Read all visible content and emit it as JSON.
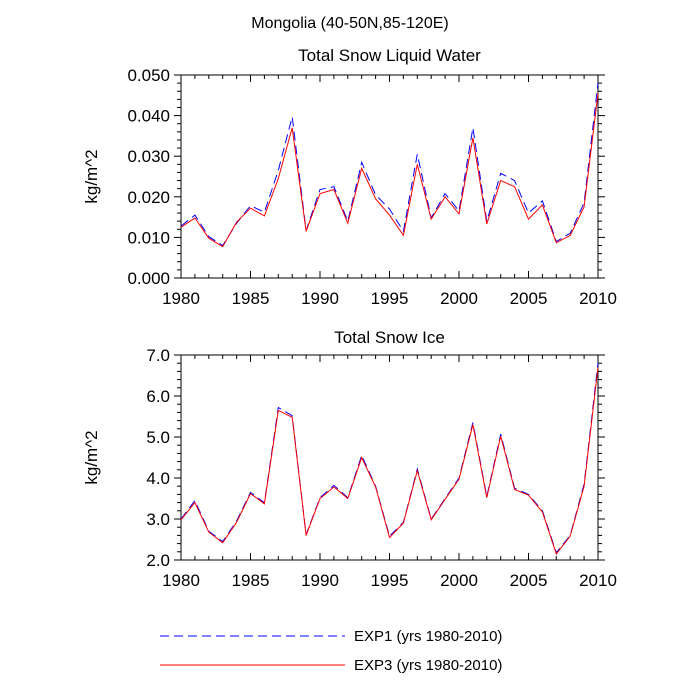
{
  "figure_title": "Mongolia (40-50N,85-120E)",
  "legend": [
    {
      "label": "EXP1 (yrs 1980-2010)",
      "color": "#0000ff",
      "dash": "dashed"
    },
    {
      "label": "EXP3 (yrs 1980-2010)",
      "color": "#ff0000",
      "dash": "solid"
    }
  ],
  "chart_data": [
    {
      "type": "line",
      "title": "Total Snow Liquid Water",
      "xlabel": "",
      "ylabel": "kg/m^2",
      "xlim": [
        1980,
        2010
      ],
      "ylim": [
        0.0,
        0.05
      ],
      "xticks": [
        1980,
        1985,
        1990,
        1995,
        2000,
        2005,
        2010
      ],
      "xtick_labels": [
        "1980",
        "1985",
        "1990",
        "1995",
        "2000",
        "2005",
        "2010"
      ],
      "yticks": [
        0.0,
        0.01,
        0.02,
        0.03,
        0.04,
        0.05
      ],
      "ytick_labels": [
        "0.000",
        "0.010",
        "0.020",
        "0.030",
        "0.040",
        "0.050"
      ],
      "x": [
        1980,
        1981,
        1982,
        1983,
        1984,
        1985,
        1986,
        1987,
        1988,
        1989,
        1990,
        1991,
        1992,
        1993,
        1994,
        1995,
        1996,
        1997,
        1998,
        1999,
        2000,
        2001,
        2002,
        2003,
        2004,
        2005,
        2006,
        2007,
        2008,
        2009,
        2010
      ],
      "series": [
        {
          "name": "EXP1 (yrs 1980-2010)",
          "color": "#0000ff",
          "dash": "dashed",
          "values": [
            0.0128,
            0.0155,
            0.0102,
            0.008,
            0.0135,
            0.0178,
            0.0162,
            0.0265,
            0.0397,
            0.0117,
            0.0218,
            0.0225,
            0.014,
            0.0285,
            0.0205,
            0.017,
            0.0115,
            0.0305,
            0.0148,
            0.0208,
            0.0165,
            0.037,
            0.014,
            0.0258,
            0.024,
            0.016,
            0.019,
            0.009,
            0.011,
            0.0185,
            0.048
          ]
        },
        {
          "name": "EXP3 (yrs 1980-2010)",
          "color": "#ff0000",
          "dash": "solid",
          "values": [
            0.0125,
            0.0148,
            0.0098,
            0.0077,
            0.0138,
            0.0172,
            0.0153,
            0.0245,
            0.037,
            0.0115,
            0.0208,
            0.0218,
            0.0135,
            0.027,
            0.0195,
            0.0155,
            0.0105,
            0.028,
            0.0145,
            0.02,
            0.0158,
            0.0345,
            0.0133,
            0.024,
            0.0225,
            0.0145,
            0.018,
            0.0087,
            0.0105,
            0.0175,
            0.0455
          ]
        }
      ]
    },
    {
      "type": "line",
      "title": "Total Snow Ice",
      "xlabel": "",
      "ylabel": "kg/m^2",
      "xlim": [
        1980,
        2010
      ],
      "ylim": [
        2.0,
        7.0
      ],
      "xticks": [
        1980,
        1985,
        1990,
        1995,
        2000,
        2005,
        2010
      ],
      "xtick_labels": [
        "1980",
        "1985",
        "1990",
        "1995",
        "2000",
        "2005",
        "2010"
      ],
      "yticks": [
        2.0,
        3.0,
        4.0,
        5.0,
        6.0,
        7.0
      ],
      "ytick_labels": [
        "2.0",
        "3.0",
        "4.0",
        "5.0",
        "6.0",
        "7.0"
      ],
      "x": [
        1980,
        1981,
        1982,
        1983,
        1984,
        1985,
        1986,
        1987,
        1988,
        1989,
        1990,
        1991,
        1992,
        1993,
        1994,
        1995,
        1996,
        1997,
        1998,
        1999,
        2000,
        2001,
        2002,
        2003,
        2004,
        2005,
        2006,
        2007,
        2008,
        2009,
        2010
      ],
      "series": [
        {
          "name": "EXP1 (yrs 1980-2010)",
          "color": "#0000ff",
          "dash": "dashed",
          "values": [
            3.0,
            3.45,
            2.7,
            2.45,
            2.95,
            3.65,
            3.4,
            5.72,
            5.52,
            2.62,
            3.52,
            3.82,
            3.52,
            4.55,
            3.8,
            2.58,
            2.92,
            4.22,
            3.0,
            3.5,
            4.0,
            5.35,
            3.55,
            5.07,
            3.75,
            3.6,
            3.2,
            2.18,
            2.6,
            3.85,
            6.8
          ]
        },
        {
          "name": "EXP3 (yrs 1980-2010)",
          "color": "#ff0000",
          "dash": "solid",
          "values": [
            2.98,
            3.4,
            2.68,
            2.42,
            2.92,
            3.62,
            3.37,
            5.65,
            5.48,
            2.6,
            3.5,
            3.78,
            3.5,
            4.5,
            3.78,
            2.55,
            2.9,
            4.18,
            2.98,
            3.48,
            3.97,
            5.3,
            3.52,
            5.02,
            3.72,
            3.58,
            3.17,
            2.15,
            2.58,
            3.8,
            6.7
          ]
        }
      ]
    }
  ]
}
